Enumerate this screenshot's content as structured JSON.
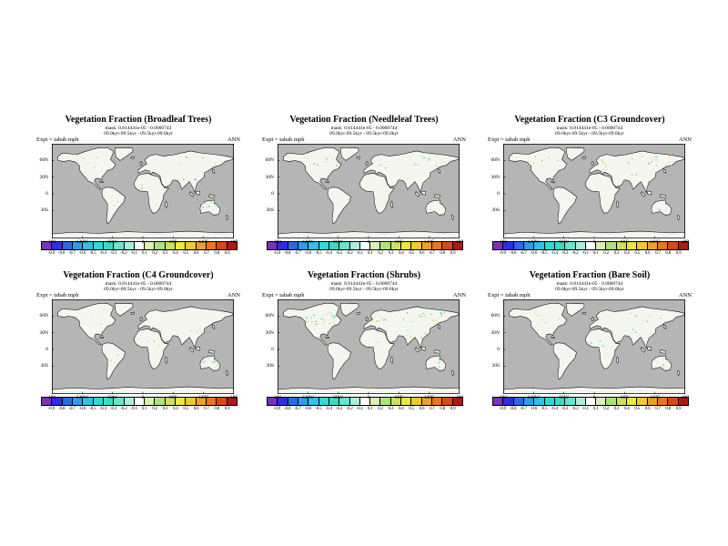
{
  "page": {
    "background": "#ffffff"
  },
  "panels": [
    {
      "id": "broadleaf-trees",
      "title": "Vegetation Fraction (Broadleaf Trees)",
      "subtitle1": "mask: 0.814441e-05 - 0.0000744",
      "subtitle2": "09.0kyr-09.5kyr - 09.5kyr-09.0kyr",
      "expt": "Expt = tabab mph",
      "season": "ANN"
    },
    {
      "id": "needleleaf-trees",
      "title": "Vegetation Fraction (Needleleaf Trees)",
      "subtitle1": "mask: 0.814441e-05 - 0.0000744",
      "subtitle2": "09.0kyr-09.5kyr - 09.5kyr-09.0kyr",
      "expt": "Expt = tabab mph",
      "season": "ANN"
    },
    {
      "id": "c3-groundcover",
      "title": "Vegetation Fraction (C3 Groundcover)",
      "subtitle1": "mask: 0.814441e-05 - 0.0000744",
      "subtitle2": "09.0kyr-09.5kyr - 09.5kyr-09.0kyr",
      "expt": "Expt = tabab mph",
      "season": "ANN"
    },
    {
      "id": "c4-groundcover",
      "title": "Vegetation Fraction (C4 Groundcover)",
      "subtitle1": "mask: 0.814441e-05 - 0.0000744",
      "subtitle2": "09.0kyr-09.5kyr - 09.5kyr-09.0kyr",
      "expt": "Expt = tabab mph",
      "season": "ANN"
    },
    {
      "id": "shrubs",
      "title": "Vegetation Fraction (Shrubs)",
      "subtitle1": "mask: 0.814441e-05 - 0.0000744",
      "subtitle2": "09.0kyr-09.5kyr - 09.5kyr-09.0kyr",
      "expt": "Expt = tabab mph",
      "season": "ANN"
    },
    {
      "id": "bare-soil",
      "title": "Vegetation Fraction (Bare Soil)",
      "subtitle1": "mask: 0.814441e-05 - 0.0000744",
      "subtitle2": "09.0kyr-09.5kyr - 09.5kyr-09.0kyr",
      "expt": "Expt = tabab mph",
      "season": "ANN"
    }
  ],
  "map": {
    "lat_labels": [
      "60N",
      "30N",
      "0",
      "30S"
    ],
    "lon_labels": [
      "180",
      "120W",
      "60W",
      "0",
      "60E",
      "120E",
      "180"
    ],
    "ocean_color": "#b5b5b5",
    "land_color": "#f6f6f0"
  },
  "colorbar": {
    "tick_labels": [
      "-0.9",
      "-0.8",
      "-0.7",
      "-0.6",
      "-0.5",
      "-0.4",
      "-0.3",
      "-0.2",
      "-0.1",
      "0.1",
      "0.2",
      "0.3",
      "0.4",
      "0.5",
      "0.6",
      "0.7",
      "0.8",
      "0.9"
    ],
    "colors": [
      "#7d2fbd",
      "#2e2ee0",
      "#2b6ae0",
      "#2e9ce8",
      "#30c0e8",
      "#30d8d8",
      "#38dcc4",
      "#66e4cc",
      "#a8eee0",
      "#ffffff",
      "#d8f0b0",
      "#a8e47c",
      "#cce05a",
      "#ece83c",
      "#f0c832",
      "#f0a028",
      "#e87820",
      "#d84818",
      "#b01810"
    ]
  },
  "chart_data": {
    "type": "heatmap",
    "layout": "2x3 grid of global latitude-longitude anomaly maps, each with its own horizontal colorbar",
    "shared": {
      "x_tick_labels": [
        "180",
        "120W",
        "60W",
        "0",
        "60E",
        "120E",
        "180"
      ],
      "y_tick_labels": [
        "60N",
        "30N",
        "0",
        "30S"
      ],
      "colorbar_levels": [
        -0.9,
        -0.8,
        -0.7,
        -0.6,
        -0.5,
        -0.4,
        -0.3,
        -0.2,
        -0.1,
        0.1,
        0.2,
        0.3,
        0.4,
        0.5,
        0.6,
        0.7,
        0.8,
        0.9
      ],
      "annotation_left": "Expt = tabab mph",
      "annotation_right": "ANN",
      "subtitle_line1": "mask: 0.814441e-05 - 0.0000744",
      "subtitle_line2": "09.0kyr-09.5kyr - 09.5kyr-09.0kyr",
      "grid": false,
      "legend_position": "bottom"
    },
    "panels": [
      {
        "title": "Vegetation Fraction (Broadleaf Trees)",
        "field_summary": "difference field near zero (white) over most land; sparse +0.1 to +0.5 patches over Australia and high northern latitudes"
      },
      {
        "title": "Vegetation Fraction (Needleleaf Trees)",
        "field_summary": "sparse small anomalies over boreal North America and northern Eurasia"
      },
      {
        "title": "Vegetation Fraction (C3 Groundcover)",
        "field_summary": "scattered teal/green anomalies across northern Eurasia and Canada"
      },
      {
        "title": "Vegetation Fraction (C4 Groundcover)",
        "field_summary": "sparse anomalies over Australia, India and tropical land"
      },
      {
        "title": "Vegetation Fraction (Shrubs)",
        "field_summary": "densest panel: many small cyan/green/yellow patches across North America and Eurasia"
      },
      {
        "title": "Vegetation Fraction (Bare Soil)",
        "field_summary": "sparse anomalies scattered over Australia and northern continents"
      }
    ]
  }
}
